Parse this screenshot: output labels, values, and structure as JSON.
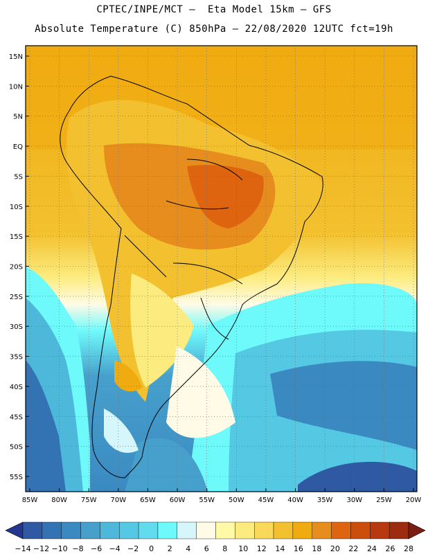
{
  "title": {
    "line1": "CPTEC/INPE/MCT –  Eta Model 15km – GFS",
    "line2": "Absolute Temperature (C) 850hPa – 22/08/2020 12UTC fct=19h"
  },
  "map": {
    "lat_labels": [
      "15N",
      "10N",
      "5N",
      "EQ",
      "5S",
      "10S",
      "15S",
      "20S",
      "25S",
      "30S",
      "35S",
      "40S",
      "45S",
      "50S",
      "55S"
    ],
    "lon_labels": [
      "85W",
      "80W",
      "75W",
      "70W",
      "65W",
      "60W",
      "55W",
      "50W",
      "45W",
      "40W",
      "35W",
      "30W",
      "25W",
      "20W"
    ],
    "lat_range": [
      15,
      -55
    ],
    "lon_range": [
      -85,
      -20
    ]
  },
  "colorbar": {
    "labels": [
      "-14",
      "-12",
      "-10",
      "-8",
      "-6",
      "-4",
      "-2",
      "0",
      "2",
      "4",
      "6",
      "8",
      "10",
      "12",
      "14",
      "16",
      "18",
      "20",
      "22",
      "24",
      "26",
      "28"
    ],
    "colors": [
      "#24378f",
      "#2f59a3",
      "#3373b3",
      "#3a8ac1",
      "#47a0cc",
      "#4db8d9",
      "#55c9e3",
      "#62dbee",
      "#6ef9fb",
      "#d5f6fa",
      "#fffbe6",
      "#fff9a8",
      "#fcec80",
      "#f9d85a",
      "#f3c12f",
      "#f0ab10",
      "#e68d1d",
      "#df6410",
      "#cc4e0d",
      "#b8390f",
      "#9c2b10",
      "#7a1d12"
    ]
  }
}
